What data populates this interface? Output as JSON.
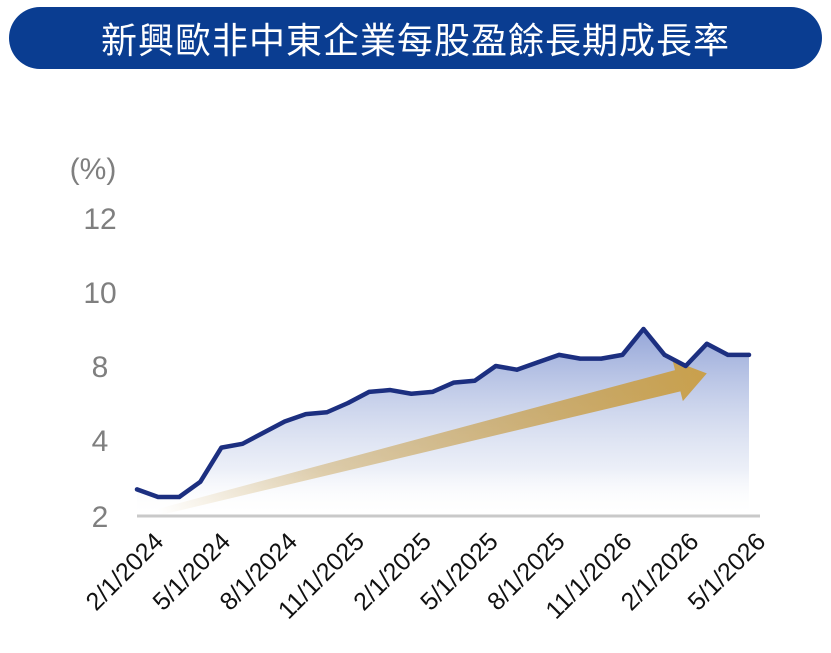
{
  "title": "新興歐非中東企業每股盈餘長期成長率",
  "colors": {
    "title_bg": "#0a3d91",
    "line": "#1c2f80",
    "area_top": "#8fa1d6",
    "arrow": "#c9a04c",
    "axis": "#c9c9c9"
  },
  "chart_data": {
    "type": "area",
    "title": "新興歐非中東企業每股盈餘長期成長率",
    "ylabel": "(%)",
    "yticks": [
      "2",
      "4",
      "8",
      "10",
      "12"
    ],
    "xticks": [
      "2/1/2024",
      "5/1/2024",
      "8/1/2024",
      "11/1/2025",
      "2/1/2025",
      "5/1/2025",
      "8/1/2025",
      "11/1/2026",
      "2/1/2026",
      "5/1/2026"
    ],
    "x": [
      "2024-01-01",
      "2024-02-01",
      "2024-03-01",
      "2024-04-01",
      "2024-05-01",
      "2024-06-01",
      "2024-07-01",
      "2024-08-01",
      "2024-09-01",
      "2024-10-01",
      "2024-11-01",
      "2024-12-01",
      "2025-01-01",
      "2025-02-01",
      "2025-03-01",
      "2025-04-01",
      "2025-05-01",
      "2025-06-01",
      "2025-07-01",
      "2025-08-01",
      "2025-09-01",
      "2025-10-01",
      "2025-11-01",
      "2025-12-01",
      "2026-01-01",
      "2026-02-01",
      "2026-03-01",
      "2026-04-01",
      "2026-05-01",
      "2026-06-01"
    ],
    "series": [
      {
        "values": [
          2.7,
          2.5,
          2.5,
          2.9,
          3.8,
          3.9,
          4.4,
          5.0,
          5.4,
          5.5,
          6.0,
          6.6,
          6.7,
          6.5,
          6.6,
          7.1,
          7.2,
          8.0,
          7.8,
          8.1,
          8.3,
          8.2,
          8.2,
          8.3,
          9.0,
          8.3,
          8.0,
          8.6,
          8.3,
          8.3
        ],
        "color": "#1c2f80"
      }
    ],
    "trend_arrow": {
      "from": [
        1,
        2.1
      ],
      "to": [
        27,
        7.6
      ],
      "color": "#c9a04c"
    },
    "grid": false,
    "legend": "none"
  }
}
